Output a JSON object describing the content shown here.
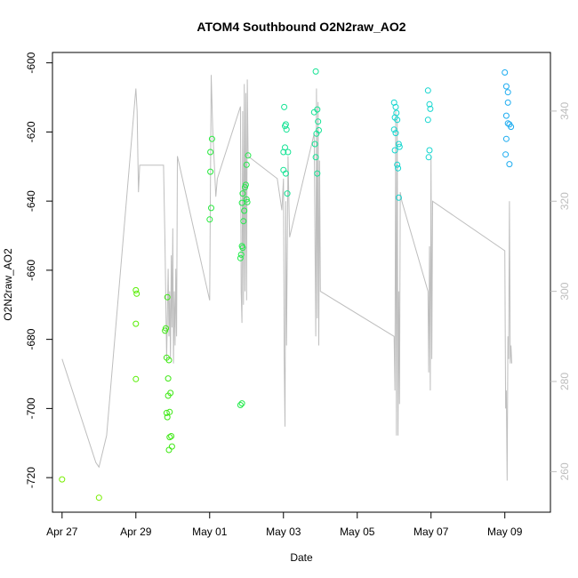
{
  "chart_data": {
    "type": "scatter",
    "title": "ATOM4 Southbound O2N2raw_AO2",
    "xlabel": "Date",
    "ylabel": "O2N2raw_AO2",
    "xlim": [
      "2018-04-26T17:45",
      "2018-05-10T05:40"
    ],
    "ylim": [
      -730,
      -597
    ],
    "y2lim": [
      251,
      353
    ],
    "x_ticks": [
      {
        "label": "Apr 27",
        "value": "2018-04-27"
      },
      {
        "label": "Apr 29",
        "value": "2018-04-29"
      },
      {
        "label": "May 01",
        "value": "2018-05-01"
      },
      {
        "label": "May 03",
        "value": "2018-05-03"
      },
      {
        "label": "May 05",
        "value": "2018-05-05"
      },
      {
        "label": "May 07",
        "value": "2018-05-07"
      },
      {
        "label": "May 09",
        "value": "2018-05-09"
      }
    ],
    "y_ticks": [
      -720,
      -700,
      -680,
      -660,
      -640,
      -620,
      -600
    ],
    "y2_ticks": [
      260,
      280,
      300,
      320,
      340
    ],
    "secondary_line": {
      "color": "#bebebe",
      "points": [
        [
          "2018-04-27T00:00",
          285
        ],
        [
          "2018-04-27T22:00",
          262
        ],
        [
          "2018-04-27T22:00",
          262
        ],
        [
          "2018-04-28T00:00",
          261
        ],
        [
          "2018-04-28T05:00",
          268
        ],
        [
          "2018-04-29T00:00",
          345
        ],
        [
          "2018-04-29T00:50",
          340
        ],
        [
          "2018-04-29T01:40",
          322
        ],
        [
          "2018-04-29T02:30",
          328
        ],
        [
          "2018-04-29T18:00",
          328
        ],
        [
          "2018-04-29T19:00",
          310
        ],
        [
          "2018-04-29T20:00",
          285
        ],
        [
          "2018-04-29T21:00",
          305
        ],
        [
          "2018-04-29T21:30",
          290
        ],
        [
          "2018-04-29T22:00",
          300
        ],
        [
          "2018-04-29T22:30",
          285
        ],
        [
          "2018-04-29T23:00",
          308
        ],
        [
          "2018-04-29T23:30",
          292
        ],
        [
          "2018-04-30T00:00",
          314
        ],
        [
          "2018-04-30T00:30",
          284
        ],
        [
          "2018-04-30T01:00",
          300
        ],
        [
          "2018-04-30T01:30",
          288
        ],
        [
          "2018-04-30T02:00",
          305
        ],
        [
          "2018-04-30T02:30",
          290
        ],
        [
          "2018-04-30T03:00",
          330
        ],
        [
          "2018-05-01T00:00",
          298
        ],
        [
          "2018-05-01T01:00",
          348
        ],
        [
          "2018-05-01T02:00",
          336
        ],
        [
          "2018-05-01T04:00",
          321
        ],
        [
          "2018-05-01T05:00",
          325
        ],
        [
          "2018-05-01T20:00",
          341
        ],
        [
          "2018-05-01T20:30",
          300
        ],
        [
          "2018-05-01T21:00",
          293
        ],
        [
          "2018-05-01T21:30",
          340
        ],
        [
          "2018-05-01T22:00",
          297
        ],
        [
          "2018-05-01T22:30",
          346
        ],
        [
          "2018-05-01T23:00",
          300
        ],
        [
          "2018-05-01T23:30",
          344
        ],
        [
          "2018-05-02T00:00",
          298
        ],
        [
          "2018-05-02T00:30",
          347
        ],
        [
          "2018-05-02T01:00",
          330
        ],
        [
          "2018-05-02T20:00",
          325
        ],
        [
          "2018-05-02T23:00",
          318
        ],
        [
          "2018-05-03T00:00",
          325
        ],
        [
          "2018-05-03T00:30",
          285
        ],
        [
          "2018-05-03T01:00",
          270
        ],
        [
          "2018-05-03T01:30",
          320
        ],
        [
          "2018-05-03T02:00",
          288
        ],
        [
          "2018-05-03T02:30",
          310
        ],
        [
          "2018-05-03T03:00",
          330
        ],
        [
          "2018-05-03T04:00",
          312
        ],
        [
          "2018-05-03T20:00",
          335
        ],
        [
          "2018-05-03T21:00",
          290
        ],
        [
          "2018-05-03T21:30",
          345
        ],
        [
          "2018-05-03T22:00",
          294
        ],
        [
          "2018-05-03T22:30",
          342
        ],
        [
          "2018-05-03T23:00",
          288
        ],
        [
          "2018-05-03T23:30",
          329
        ],
        [
          "2018-05-04T00:00",
          300
        ],
        [
          "2018-05-06T00:00",
          290
        ],
        [
          "2018-05-06T00:30",
          278
        ],
        [
          "2018-05-06T01:00",
          340
        ],
        [
          "2018-05-06T01:30",
          268
        ],
        [
          "2018-05-06T02:00",
          338
        ],
        [
          "2018-05-06T02:30",
          268
        ],
        [
          "2018-05-06T03:00",
          300
        ],
        [
          "2018-05-06T03:30",
          275
        ],
        [
          "2018-05-06T04:00",
          322
        ],
        [
          "2018-05-06T05:00",
          320
        ],
        [
          "2018-05-06T22:00",
          300
        ],
        [
          "2018-05-06T22:30",
          282
        ],
        [
          "2018-05-06T23:00",
          310
        ],
        [
          "2018-05-06T23:30",
          278
        ],
        [
          "2018-05-07T00:00",
          330
        ],
        [
          "2018-05-07T00:30",
          285
        ],
        [
          "2018-05-07T01:00",
          320
        ],
        [
          "2018-05-09T00:00",
          309
        ],
        [
          "2018-05-09T00:30",
          274
        ],
        [
          "2018-05-09T01:00",
          278
        ],
        [
          "2018-05-09T01:30",
          258
        ],
        [
          "2018-05-09T02:00",
          290
        ],
        [
          "2018-05-09T02:30",
          285
        ],
        [
          "2018-05-09T03:00",
          320
        ],
        [
          "2018-05-09T03:30",
          284
        ],
        [
          "2018-05-09T04:00",
          288
        ],
        [
          "2018-05-09T04:30",
          284
        ]
      ]
    },
    "points": [
      {
        "x": "2018-04-27T00:00",
        "y": -720.5,
        "color": "#77ee00"
      },
      {
        "x": "2018-04-28T00:00",
        "y": -725.8,
        "color": "#77ee00"
      },
      {
        "x": "2018-04-29T00:00",
        "y": -665.8,
        "color": "#55ee00"
      },
      {
        "x": "2018-04-29T00:30",
        "y": -666.8,
        "color": "#55ee00"
      },
      {
        "x": "2018-04-29T00:00",
        "y": -675.5,
        "color": "#55ee00"
      },
      {
        "x": "2018-04-29T00:00",
        "y": -691.5,
        "color": "#55ee00"
      },
      {
        "x": "2018-04-29T19:00",
        "y": -677.5,
        "color": "#3ee814"
      },
      {
        "x": "2018-04-29T19:30",
        "y": -676.8,
        "color": "#3ee814"
      },
      {
        "x": "2018-04-29T20:00",
        "y": -685.3,
        "color": "#3ee814"
      },
      {
        "x": "2018-04-29T20:30",
        "y": -667.8,
        "color": "#3ee814"
      },
      {
        "x": "2018-04-29T21:00",
        "y": -691.3,
        "color": "#3ee814"
      },
      {
        "x": "2018-04-29T21:30",
        "y": -686.0,
        "color": "#3ee814"
      },
      {
        "x": "2018-04-29T20:00",
        "y": -701.3,
        "color": "#3ee814"
      },
      {
        "x": "2018-04-29T20:30",
        "y": -702.5,
        "color": "#3ee814"
      },
      {
        "x": "2018-04-29T22:00",
        "y": -701.0,
        "color": "#3ee814"
      },
      {
        "x": "2018-04-29T21:00",
        "y": -696.3,
        "color": "#3ee814"
      },
      {
        "x": "2018-04-29T22:30",
        "y": -695.5,
        "color": "#3ee814"
      },
      {
        "x": "2018-04-29T22:00",
        "y": -708.3,
        "color": "#3ee814"
      },
      {
        "x": "2018-04-29T23:00",
        "y": -708.0,
        "color": "#3ee814"
      },
      {
        "x": "2018-04-29T23:30",
        "y": -711.0,
        "color": "#3ee814"
      },
      {
        "x": "2018-04-29T21:30",
        "y": -712.0,
        "color": "#3ee814"
      },
      {
        "x": "2018-05-01T00:00",
        "y": -645.3,
        "color": "#25ea3b"
      },
      {
        "x": "2018-05-01T01:00",
        "y": -642.0,
        "color": "#25ea3b"
      },
      {
        "x": "2018-05-01T01:30",
        "y": -622.0,
        "color": "#25ea3b"
      },
      {
        "x": "2018-05-01T00:30",
        "y": -625.8,
        "color": "#25ea3b"
      },
      {
        "x": "2018-05-01T00:30",
        "y": -631.5,
        "color": "#25ea3b"
      },
      {
        "x": "2018-05-01T20:00",
        "y": -656.5,
        "color": "#22ea4a"
      },
      {
        "x": "2018-05-01T20:30",
        "y": -655.5,
        "color": "#22ea4a"
      },
      {
        "x": "2018-05-01T21:00",
        "y": -653.0,
        "color": "#22ea4a"
      },
      {
        "x": "2018-05-01T21:30",
        "y": -653.5,
        "color": "#22ea4a"
      },
      {
        "x": "2018-05-01T22:00",
        "y": -645.8,
        "color": "#22ea4a"
      },
      {
        "x": "2018-05-01T22:30",
        "y": -642.8,
        "color": "#22ea4a"
      },
      {
        "x": "2018-05-01T21:00",
        "y": -640.5,
        "color": "#22ea4a"
      },
      {
        "x": "2018-05-01T21:30",
        "y": -637.8,
        "color": "#22ea4a"
      },
      {
        "x": "2018-05-01T23:00",
        "y": -636.0,
        "color": "#22ea4a"
      },
      {
        "x": "2018-05-01T23:30",
        "y": -635.3,
        "color": "#22ea4a"
      },
      {
        "x": "2018-05-02T00:00",
        "y": -639.5,
        "color": "#22ea4a"
      },
      {
        "x": "2018-05-02T00:30",
        "y": -640.3,
        "color": "#22ea4a"
      },
      {
        "x": "2018-05-02T00:00",
        "y": -629.5,
        "color": "#22ea4a"
      },
      {
        "x": "2018-05-02T01:00",
        "y": -626.8,
        "color": "#22ea4a"
      },
      {
        "x": "2018-05-01T20:00",
        "y": -699.0,
        "color": "#22ea4a"
      },
      {
        "x": "2018-05-01T21:00",
        "y": -698.5,
        "color": "#22ea4a"
      },
      {
        "x": "2018-05-03T00:00",
        "y": -631.0,
        "color": "#14e394"
      },
      {
        "x": "2018-05-03T00:30",
        "y": -612.8,
        "color": "#14e394"
      },
      {
        "x": "2018-05-03T01:00",
        "y": -618.3,
        "color": "#14e394"
      },
      {
        "x": "2018-05-03T01:30",
        "y": -617.8,
        "color": "#14e394"
      },
      {
        "x": "2018-05-03T02:00",
        "y": -619.3,
        "color": "#14e394"
      },
      {
        "x": "2018-05-03T00:00",
        "y": -625.8,
        "color": "#14e394"
      },
      {
        "x": "2018-05-03T01:00",
        "y": -624.5,
        "color": "#14e394"
      },
      {
        "x": "2018-05-03T03:00",
        "y": -625.8,
        "color": "#14e394"
      },
      {
        "x": "2018-05-03T01:30",
        "y": -632.0,
        "color": "#14e394"
      },
      {
        "x": "2018-05-03T02:30",
        "y": -637.8,
        "color": "#14e394"
      },
      {
        "x": "2018-05-03T20:00",
        "y": -614.3,
        "color": "#14e394"
      },
      {
        "x": "2018-05-03T21:00",
        "y": -602.5,
        "color": "#14e394"
      },
      {
        "x": "2018-05-03T22:00",
        "y": -613.5,
        "color": "#14e394"
      },
      {
        "x": "2018-05-03T22:30",
        "y": -617.0,
        "color": "#14e394"
      },
      {
        "x": "2018-05-03T23:00",
        "y": -619.5,
        "color": "#14e394"
      },
      {
        "x": "2018-05-03T21:30",
        "y": -620.5,
        "color": "#14e394"
      },
      {
        "x": "2018-05-03T20:30",
        "y": -623.5,
        "color": "#14e394"
      },
      {
        "x": "2018-05-03T21:00",
        "y": -627.3,
        "color": "#14e394"
      },
      {
        "x": "2018-05-03T22:00",
        "y": -632.0,
        "color": "#14e394"
      },
      {
        "x": "2018-05-06T00:00",
        "y": -611.5,
        "color": "#14d6cf"
      },
      {
        "x": "2018-05-06T01:00",
        "y": -612.8,
        "color": "#14d6cf"
      },
      {
        "x": "2018-05-06T01:30",
        "y": -614.5,
        "color": "#14d6cf"
      },
      {
        "x": "2018-05-06T00:30",
        "y": -615.8,
        "color": "#14d6cf"
      },
      {
        "x": "2018-05-06T02:00",
        "y": -616.5,
        "color": "#14d6cf"
      },
      {
        "x": "2018-05-06T00:00",
        "y": -619.3,
        "color": "#14d6cf"
      },
      {
        "x": "2018-05-06T01:00",
        "y": -620.3,
        "color": "#14d6cf"
      },
      {
        "x": "2018-05-06T03:00",
        "y": -623.5,
        "color": "#14d6cf"
      },
      {
        "x": "2018-05-06T03:30",
        "y": -624.3,
        "color": "#14d6cf"
      },
      {
        "x": "2018-05-06T00:30",
        "y": -625.3,
        "color": "#14d6cf"
      },
      {
        "x": "2018-05-06T02:00",
        "y": -629.5,
        "color": "#14d6cf"
      },
      {
        "x": "2018-05-06T02:30",
        "y": -630.5,
        "color": "#14d6cf"
      },
      {
        "x": "2018-05-06T03:00",
        "y": -639.0,
        "color": "#14d6cf"
      },
      {
        "x": "2018-05-06T22:00",
        "y": -608.0,
        "color": "#14d6cf"
      },
      {
        "x": "2018-05-06T23:00",
        "y": -612.0,
        "color": "#14d6cf"
      },
      {
        "x": "2018-05-06T23:30",
        "y": -613.3,
        "color": "#14d6cf"
      },
      {
        "x": "2018-05-06T22:00",
        "y": -616.5,
        "color": "#14d6cf"
      },
      {
        "x": "2018-05-06T23:00",
        "y": -625.3,
        "color": "#14d6cf"
      },
      {
        "x": "2018-05-06T22:30",
        "y": -627.3,
        "color": "#14d6cf"
      },
      {
        "x": "2018-05-09T00:00",
        "y": -602.8,
        "color": "#1dacf0"
      },
      {
        "x": "2018-05-09T01:00",
        "y": -606.8,
        "color": "#1dacf0"
      },
      {
        "x": "2018-05-09T02:00",
        "y": -608.5,
        "color": "#1dacf0"
      },
      {
        "x": "2018-05-09T02:00",
        "y": -611.5,
        "color": "#1dacf0"
      },
      {
        "x": "2018-05-09T01:00",
        "y": -615.3,
        "color": "#1dacf0"
      },
      {
        "x": "2018-05-09T02:00",
        "y": -617.5,
        "color": "#1dacf0"
      },
      {
        "x": "2018-05-09T03:00",
        "y": -617.8,
        "color": "#1dacf0"
      },
      {
        "x": "2018-05-09T04:00",
        "y": -618.5,
        "color": "#1dacf0"
      },
      {
        "x": "2018-05-09T01:00",
        "y": -622.0,
        "color": "#1dacf0"
      },
      {
        "x": "2018-05-09T00:30",
        "y": -626.5,
        "color": "#1dacf0"
      },
      {
        "x": "2018-05-09T03:00",
        "y": -629.3,
        "color": "#1dacf0"
      }
    ]
  }
}
